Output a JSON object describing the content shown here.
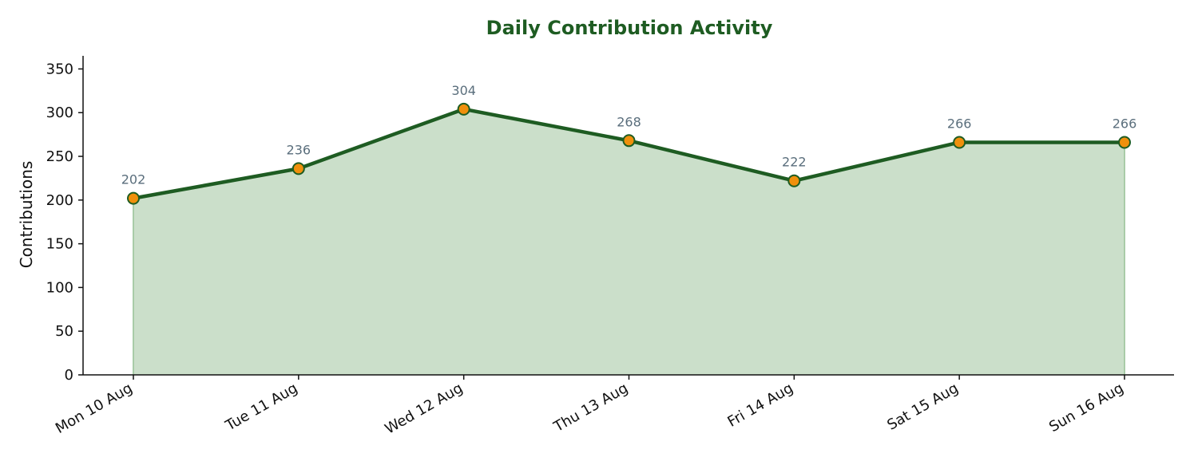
{
  "chart_data": {
    "type": "area",
    "title": "Daily Contribution Activity",
    "xlabel": "",
    "ylabel": "Contributions",
    "categories": [
      "Mon 10 Aug",
      "Tue 11 Aug",
      "Wed 12 Aug",
      "Thu 13 Aug",
      "Fri 14 Aug",
      "Sat 15 Aug",
      "Sun 16 Aug"
    ],
    "values": [
      202,
      236,
      304,
      268,
      222,
      266,
      266
    ],
    "ylim": [
      0,
      365
    ],
    "yticks": [
      0,
      50,
      100,
      150,
      200,
      250,
      300,
      350
    ],
    "grid": false,
    "legend": "none"
  },
  "colors": {
    "title": "#1e5c22",
    "line": "#1e5c22",
    "fill": "#cbdfca",
    "marker_fill": "#f0900c",
    "marker_edge": "#1e5c22",
    "data_label": "#5a6e7c",
    "axis": "#111111"
  }
}
